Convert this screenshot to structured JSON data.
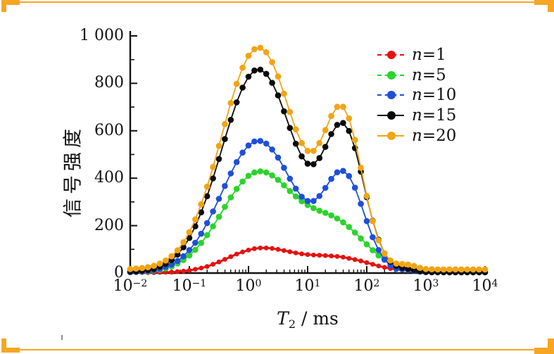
{
  "figure": {
    "background": "#ffffff",
    "frame_accent_color": "#F6A623",
    "text_color": "#111111",
    "ylabel": "信号强度",
    "xlabel": {
      "variable": "T",
      "subscript": "2",
      "unit": " / ms"
    }
  },
  "chart_data": {
    "type": "line",
    "x_scale": "log10",
    "xlim_log10": [
      -2,
      4
    ],
    "ylim": [
      0,
      1000
    ],
    "grid": false,
    "legend_position": "upper-right-inside",
    "xlabel": "T2 / ms",
    "ylabel": "信号强度 (signal intensity)",
    "x_tick_base": "10",
    "x_tick_exponents": [
      -2,
      -1,
      0,
      1,
      2,
      3,
      4
    ],
    "x_tick_exponent_labels": [
      "−2",
      "−1",
      "0",
      "1",
      "2",
      "3",
      "4"
    ],
    "y_ticks": [
      0,
      200,
      400,
      600,
      800,
      1000
    ],
    "y_tick_labels": [
      "0",
      "200",
      "400",
      "600",
      "800",
      "1 000"
    ],
    "y_minor_ticks": [
      100,
      300,
      500,
      700,
      900
    ],
    "axis_color": "#111111",
    "log10_T2": [
      -2,
      -1.9,
      -1.8,
      -1.7,
      -1.6,
      -1.5,
      -1.4,
      -1.3,
      -1.2,
      -1.1,
      -1,
      -0.9,
      -0.8,
      -0.7,
      -0.6,
      -0.5,
      -0.4,
      -0.3,
      -0.2,
      -0.1,
      0,
      0.1,
      0.2,
      0.3,
      0.4,
      0.5,
      0.6,
      0.7,
      0.8,
      0.9,
      1,
      1.1,
      1.2,
      1.3,
      1.4,
      1.5,
      1.6,
      1.7,
      1.8,
      1.9,
      2,
      2.1,
      2.2,
      2.3,
      2.4,
      2.5,
      2.6,
      2.7,
      2.8,
      2.9,
      3,
      3.1,
      3.2,
      3.3,
      3.4,
      3.5,
      3.6,
      3.7,
      3.8,
      3.9,
      4
    ],
    "series": [
      {
        "label": "n=1",
        "color": "#E51111",
        "marker": "circle",
        "marker_radius": 3.4,
        "line_width": 3,
        "legend_dash": true,
        "values": [
          2,
          2,
          2,
          2,
          2,
          3,
          4,
          4,
          6,
          8,
          11,
          16,
          21,
          28,
          37,
          47,
          58,
          69,
          80,
          89,
          97,
          103,
          106,
          106,
          104,
          100,
          95,
          90,
          85,
          81,
          78,
          76,
          75,
          74,
          72,
          70,
          67,
          62,
          57,
          51,
          44,
          37,
          30,
          24,
          19,
          16,
          13,
          11,
          8,
          6,
          4,
          3,
          2,
          2,
          2,
          2,
          2,
          2,
          2,
          2,
          2
        ]
      },
      {
        "label": "n=5",
        "color": "#2BD32B",
        "marker": "circle",
        "marker_radius": 4.3,
        "line_width": 1.8,
        "legend_dash": true,
        "values": [
          4,
          5,
          6,
          7,
          10,
          14,
          20,
          28,
          40,
          55,
          74,
          98,
          127,
          160,
          197,
          237,
          279,
          319,
          355,
          386,
          410,
          424,
          429,
          424,
          412,
          393,
          370,
          346,
          323,
          303,
          287,
          274,
          263,
          254,
          243,
          230,
          214,
          194,
          171,
          146,
          121,
          96,
          74,
          56,
          41,
          32,
          25,
          19,
          14,
          9,
          6,
          4,
          3,
          3,
          3,
          3,
          3,
          3,
          3,
          3,
          3
        ]
      },
      {
        "label": "n=10",
        "color": "#1E4FD9",
        "marker": "circle",
        "marker_radius": 4.3,
        "line_width": 1.8,
        "legend_dash": true,
        "values": [
          4,
          5,
          7,
          9,
          12,
          18,
          26,
          36,
          51,
          71,
          97,
          128,
          166,
          211,
          260,
          313,
          367,
          420,
          468,
          508,
          538,
          555,
          557,
          546,
          521,
          487,
          444,
          398,
          356,
          322,
          304,
          304,
          325,
          359,
          397,
          425,
          431,
          409,
          360,
          292,
          219,
          151,
          97,
          57,
          32,
          18,
          16,
          14,
          10,
          6,
          4,
          3,
          3,
          3,
          3,
          3,
          3,
          3,
          3,
          3,
          3
        ]
      },
      {
        "label": "n=15",
        "color": "#0A0A0A",
        "marker": "circle",
        "marker_radius": 4.3,
        "line_width": 1.8,
        "legend_dash": false,
        "values": [
          6,
          7,
          10,
          13,
          18,
          27,
          39,
          55,
          78,
          109,
          148,
          197,
          256,
          324,
          399,
          481,
          565,
          646,
          720,
          782,
          828,
          854,
          858,
          840,
          802,
          749,
          682,
          612,
          545,
          492,
          461,
          459,
          485,
          532,
          586,
          625,
          633,
          599,
          527,
          428,
          320,
          221,
          141,
          83,
          48,
          30,
          22,
          18,
          13,
          8,
          5,
          4,
          4,
          4,
          4,
          4,
          4,
          4,
          4,
          4,
          4
        ]
      },
      {
        "label": "n=20",
        "color": "#F2A414",
        "marker": "circle",
        "marker_radius": 4.4,
        "line_width": 1.8,
        "legend_dash": false,
        "values": [
          17,
          19,
          21,
          25,
          31,
          40,
          53,
          71,
          96,
          130,
          172,
          226,
          290,
          364,
          447,
          536,
          628,
          717,
          798,
          866,
          916,
          944,
          950,
          931,
          889,
          829,
          756,
          679,
          606,
          548,
          515,
          515,
          548,
          603,
          662,
          701,
          701,
          652,
          561,
          444,
          325,
          219,
          138,
          83,
          53,
          40,
          38,
          36,
          30,
          22,
          17,
          16,
          15,
          15,
          15,
          15,
          15,
          15,
          15,
          15,
          15
        ]
      }
    ]
  }
}
